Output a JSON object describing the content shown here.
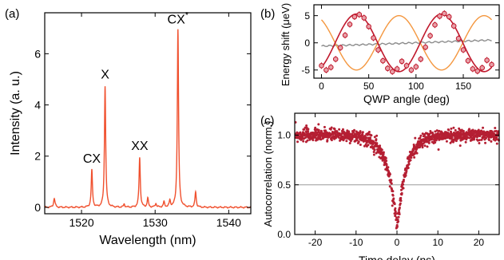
{
  "chart_data": [
    {
      "panel_label": "(a)",
      "type": "line",
      "xlabel": "Wavelength (nm)",
      "ylabel": "Intensity (a. u.)",
      "xlim": [
        1515,
        1543
      ],
      "ylim": [
        -0.25,
        7.6
      ],
      "xticks": [
        1520,
        1530,
        1540
      ],
      "yticks": [
        0,
        2,
        4,
        6
      ],
      "color": "#f0502e",
      "peaks": [
        {
          "x": 1516.3,
          "height": 0.35,
          "width": 0.12
        },
        {
          "x": 1521.4,
          "height": 1.45,
          "width": 0.1
        },
        {
          "x": 1523.2,
          "height": 4.75,
          "width": 0.1
        },
        {
          "x": 1525.8,
          "height": 0.12,
          "width": 0.1
        },
        {
          "x": 1527.9,
          "height": 1.95,
          "width": 0.1
        },
        {
          "x": 1529.0,
          "height": 0.35,
          "width": 0.1
        },
        {
          "x": 1530.1,
          "height": 0.15,
          "width": 0.1
        },
        {
          "x": 1531.2,
          "height": 0.2,
          "width": 0.1
        },
        {
          "x": 1532.0,
          "height": 0.25,
          "width": 0.1
        },
        {
          "x": 1533.1,
          "height": 6.95,
          "width": 0.1
        },
        {
          "x": 1535.5,
          "height": 0.6,
          "width": 0.1
        }
      ],
      "annotations": [
        {
          "label": "CX",
          "x": 1521.4,
          "y": 1.55
        },
        {
          "label": "X",
          "x": 1523.2,
          "y": 4.85
        },
        {
          "label": "XX",
          "x": 1527.9,
          "y": 2.05
        },
        {
          "label": "CX",
          "superscript": "*",
          "x": 1533.1,
          "y": 7.0
        }
      ]
    },
    {
      "panel_label": "(b)",
      "type": "line",
      "xlabel": "QWP angle (deg)",
      "ylabel": "Energy shift (μeV)",
      "xlim": [
        -8,
        188
      ],
      "ylim": [
        -6.5,
        7.0
      ],
      "xticks": [
        0,
        50,
        100,
        150
      ],
      "yticks": [
        -5,
        0,
        5
      ],
      "series": [
        {
          "kind": "data-with-fit",
          "color": "#c0182c",
          "amplitude": 5.3,
          "period": 90,
          "phase": 37,
          "x": [
            0,
            5,
            10,
            15,
            20,
            25,
            30,
            35,
            40,
            45,
            50,
            55,
            60,
            65,
            70,
            75,
            80,
            85,
            90,
            95,
            100,
            105,
            110,
            115,
            120,
            125,
            130,
            135,
            140,
            145,
            150,
            155,
            160,
            165,
            170,
            175,
            180
          ],
          "y": [
            -4.2,
            -5.0,
            -4.5,
            -3.0,
            -0.9,
            1.4,
            3.4,
            4.8,
            5.2,
            4.6,
            3.0,
            0.9,
            -1.3,
            -3.3,
            -4.7,
            -5.3,
            -4.8,
            -3.4,
            -4.2,
            -5.0,
            -4.4,
            -3.0,
            -0.8,
            1.3,
            3.3,
            4.9,
            5.4,
            4.8,
            3.1,
            0.8,
            -1.3,
            -3.3,
            -4.8,
            -5.2,
            -4.6,
            -3.2,
            -4.0
          ]
        },
        {
          "kind": "curve",
          "color": "#f4973f",
          "amplitude": 5.0,
          "period": 90,
          "phase": 82
        },
        {
          "kind": "curve",
          "color": "#8c8c8c",
          "start": -0.6,
          "end": 0.5
        }
      ]
    },
    {
      "panel_label": "(c)",
      "type": "scatter",
      "xlabel": "Time delay (ns)",
      "ylabel": "Autocorrelation (norm.)",
      "xlim": [
        -25,
        25
      ],
      "ylim": [
        0.0,
        1.22
      ],
      "xticks": [
        -20,
        -10,
        0,
        10,
        20
      ],
      "yticks": [
        0.0,
        0.5,
        1.0
      ],
      "reference_line_y": 0.5,
      "color": "#b51f33",
      "dip_minimum": 0.07,
      "dip_width_ns": 2.3,
      "baseline": 1.0,
      "noise": 0.06
    }
  ]
}
